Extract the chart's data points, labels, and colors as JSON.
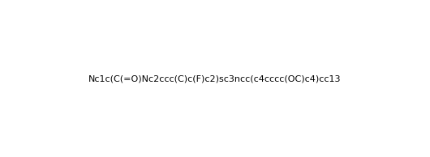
{
  "smiles": "Nc1c(C(=O)Nc2ccc(C)c(F)c2)sc3ncc(c4cccc(OC)c4)cc13",
  "title": "",
  "background_color": "#ffffff",
  "figsize": [
    5.3,
    1.94
  ],
  "dpi": 100
}
